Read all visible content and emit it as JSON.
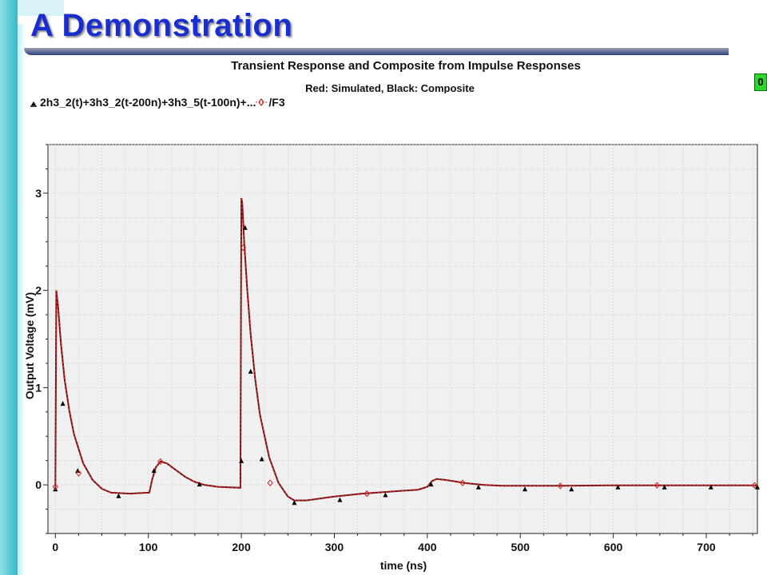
{
  "slide": {
    "title": "A Demonstration"
  },
  "side_indicator": "0",
  "chart_data": {
    "type": "line",
    "title": "Transient Response and Composite from Impulse Responses",
    "subtitle": "Red: Simulated, Black: Composite",
    "xlabel": "time (ns)",
    "ylabel": "Output Voltage (mV)",
    "xlim": [
      -8,
      755
    ],
    "ylim": [
      -0.5,
      3.5
    ],
    "xticks": [
      0,
      100,
      200,
      300,
      400,
      500,
      600,
      700
    ],
    "yticks": [
      0,
      1,
      2,
      3
    ],
    "grid": true,
    "legend": "top-left",
    "series": [
      {
        "name": "2h3_2(t)+3h3_2(t-200n)+3h3_5(t-100n)+...",
        "color": "#000000",
        "marker": "triangle",
        "x": [
          0,
          8,
          24,
          68,
          106,
          155,
          200,
          204,
          210,
          222,
          257,
          306,
          355,
          404,
          455,
          505,
          555,
          605,
          655,
          705,
          755
        ],
        "values": [
          -0.05,
          0.83,
          0.14,
          -0.12,
          0.14,
          0.0,
          0.24,
          2.64,
          1.16,
          0.26,
          -0.19,
          -0.16,
          -0.11,
          0.0,
          -0.03,
          -0.05,
          -0.05,
          -0.03,
          -0.03,
          -0.03,
          -0.03
        ]
      },
      {
        "name": "/F3",
        "color": "#d42020",
        "marker": "diamond",
        "x": [
          0,
          1,
          3,
          6,
          10,
          15,
          20,
          30,
          40,
          50,
          60,
          80,
          100,
          101,
          104,
          108,
          113,
          120,
          130,
          140,
          150,
          160,
          175,
          199,
          200,
          201,
          203,
          206,
          210,
          215,
          220,
          230,
          240,
          250,
          257,
          270,
          300,
          330,
          360,
          390,
          400,
          405,
          410,
          420,
          440,
          460,
          480,
          500,
          550,
          600,
          650,
          700,
          755
        ],
        "values": [
          -0.02,
          2.0,
          1.82,
          1.45,
          1.08,
          0.76,
          0.52,
          0.22,
          0.05,
          -0.04,
          -0.08,
          -0.09,
          -0.08,
          -0.08,
          0.05,
          0.18,
          0.24,
          0.22,
          0.15,
          0.08,
          0.03,
          0.0,
          -0.02,
          -0.03,
          2.95,
          2.9,
          2.5,
          2.05,
          1.55,
          1.08,
          0.72,
          0.28,
          0.02,
          -0.12,
          -0.16,
          -0.16,
          -0.12,
          -0.09,
          -0.07,
          -0.05,
          -0.02,
          0.04,
          0.06,
          0.05,
          0.02,
          0.0,
          -0.01,
          -0.01,
          -0.01,
          -0.005,
          -0.005,
          -0.005,
          -0.005
        ],
        "marker_x": [
          0,
          25,
          113,
          202,
          231,
          335,
          438,
          543,
          647,
          752
        ],
        "marker_values": [
          -0.02,
          0.12,
          0.24,
          2.44,
          0.02,
          -0.09,
          0.02,
          -0.01,
          -0.005,
          -0.005
        ]
      }
    ]
  }
}
